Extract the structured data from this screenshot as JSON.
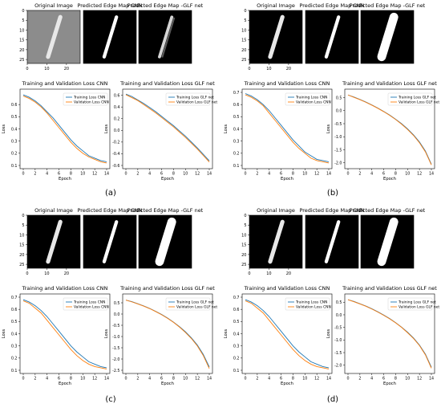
{
  "colors": {
    "training": "#1f77b4",
    "validation": "#ff7f0e",
    "frame": "#000000",
    "text": "#000000"
  },
  "image_panels": {
    "original_title": "Original Image",
    "cnn_title": "Predicted Edge Map CNN",
    "glf_title": "Predicted Edge Map -GLF net",
    "original_xticks": [
      "0",
      "10",
      "20"
    ],
    "yticks": [
      "0",
      "5",
      "10",
      "15",
      "20",
      "25"
    ]
  },
  "panels": [
    {
      "label": "(a)",
      "original_style": "gray",
      "glf_style": "edge"
    },
    {
      "label": "(b)",
      "original_style": "black",
      "glf_style": "bright"
    },
    {
      "label": "(c)",
      "original_style": "black",
      "glf_style": "bright"
    },
    {
      "label": "(d)",
      "original_style": "black",
      "glf_style": "bright"
    }
  ],
  "chart_data": [
    {
      "panel": "(a)",
      "type": "line",
      "title": "Training and Validation Loss CNN",
      "xlabel": "Epoch",
      "ylabel": "Loss",
      "xlim": [
        0,
        14
      ],
      "ylim": [
        0.1,
        0.7
      ],
      "xticks": [
        0,
        2,
        4,
        6,
        8,
        10,
        12,
        14
      ],
      "yticks": [
        0.1,
        0.2,
        0.3,
        0.4,
        0.5,
        0.6
      ],
      "legend": "top-right",
      "grid": false,
      "x": [
        0,
        1,
        2,
        3,
        4,
        5,
        6,
        7,
        8,
        9,
        10,
        11,
        12,
        13,
        14
      ],
      "series": [
        {
          "name": "Training Loss CNN",
          "values": [
            0.68,
            0.66,
            0.63,
            0.59,
            0.54,
            0.49,
            0.43,
            0.37,
            0.31,
            0.26,
            0.22,
            0.18,
            0.16,
            0.14,
            0.13
          ]
        },
        {
          "name": "Validation Loss CNN",
          "values": [
            0.67,
            0.65,
            0.62,
            0.58,
            0.53,
            0.47,
            0.41,
            0.35,
            0.29,
            0.24,
            0.2,
            0.17,
            0.15,
            0.13,
            0.12
          ]
        }
      ]
    },
    {
      "panel": "(a)",
      "type": "line",
      "title": "Training and Validation Loss GLF net",
      "xlabel": "Epoch",
      "ylabel": "Loss",
      "xlim": [
        0,
        14
      ],
      "ylim": [
        -0.6,
        0.65
      ],
      "xticks": [
        0,
        2,
        4,
        6,
        8,
        10,
        12,
        14
      ],
      "yticks": [
        -0.6,
        -0.4,
        -0.2,
        0.0,
        0.2,
        0.4,
        0.6
      ],
      "legend": "top-right",
      "grid": false,
      "x": [
        0,
        1,
        2,
        3,
        4,
        5,
        6,
        7,
        8,
        9,
        10,
        11,
        12,
        13,
        14
      ],
      "series": [
        {
          "name": "Training Loss GLF net",
          "values": [
            0.62,
            0.58,
            0.52,
            0.46,
            0.39,
            0.32,
            0.24,
            0.16,
            0.08,
            -0.01,
            -0.1,
            -0.2,
            -0.3,
            -0.41,
            -0.52
          ]
        },
        {
          "name": "Validation Loss GLF net",
          "values": [
            0.61,
            0.56,
            0.51,
            0.44,
            0.37,
            0.3,
            0.22,
            0.14,
            0.06,
            -0.03,
            -0.12,
            -0.22,
            -0.32,
            -0.43,
            -0.54
          ]
        }
      ]
    },
    {
      "panel": "(b)",
      "type": "line",
      "title": "Training and Validation Loss CNN",
      "xlabel": "Epoch",
      "ylabel": "Loss",
      "xlim": [
        0,
        14
      ],
      "ylim": [
        0.1,
        0.7
      ],
      "xticks": [
        0,
        2,
        4,
        6,
        8,
        10,
        12,
        14
      ],
      "yticks": [
        0.1,
        0.2,
        0.3,
        0.4,
        0.5,
        0.6,
        0.7
      ],
      "legend": "top-right",
      "grid": false,
      "x": [
        0,
        1,
        2,
        3,
        4,
        5,
        6,
        7,
        8,
        9,
        10,
        11,
        12,
        13,
        14
      ],
      "series": [
        {
          "name": "Training Loss CNN",
          "values": [
            0.69,
            0.67,
            0.64,
            0.6,
            0.55,
            0.49,
            0.43,
            0.37,
            0.31,
            0.26,
            0.21,
            0.18,
            0.15,
            0.14,
            0.13
          ]
        },
        {
          "name": "Validation Loss CNN",
          "values": [
            0.68,
            0.66,
            0.63,
            0.59,
            0.53,
            0.47,
            0.41,
            0.35,
            0.29,
            0.24,
            0.2,
            0.16,
            0.14,
            0.13,
            0.12
          ]
        }
      ]
    },
    {
      "panel": "(b)",
      "type": "line",
      "title": "Training and Validation Loss GLF net",
      "xlabel": "Epoch",
      "ylabel": "Loss",
      "xlim": [
        0,
        14
      ],
      "ylim": [
        -2.1,
        0.7
      ],
      "xticks": [
        0,
        2,
        4,
        6,
        8,
        10,
        12,
        14
      ],
      "yticks": [
        -2.0,
        -1.5,
        -1.0,
        -0.5,
        0.0,
        0.5
      ],
      "legend": "top-right",
      "grid": false,
      "x": [
        0,
        1,
        2,
        3,
        4,
        5,
        6,
        7,
        8,
        9,
        10,
        11,
        12,
        13,
        14
      ],
      "series": [
        {
          "name": "Training Loss GLF net",
          "values": [
            0.6,
            0.52,
            0.43,
            0.33,
            0.22,
            0.1,
            -0.03,
            -0.17,
            -0.33,
            -0.5,
            -0.7,
            -0.93,
            -1.2,
            -1.55,
            -2.05
          ]
        },
        {
          "name": "Validation Loss GLF net",
          "values": [
            0.6,
            0.51,
            0.42,
            0.32,
            0.21,
            0.09,
            -0.04,
            -0.18,
            -0.34,
            -0.52,
            -0.72,
            -0.95,
            -1.23,
            -1.58,
            -2.08
          ]
        }
      ]
    },
    {
      "panel": "(c)",
      "type": "line",
      "title": "Training and Validation Loss CNN",
      "xlabel": "Epoch",
      "ylabel": "Loss",
      "xlim": [
        0,
        14
      ],
      "ylim": [
        0.1,
        0.7
      ],
      "xticks": [
        0,
        2,
        4,
        6,
        8,
        10,
        12,
        14
      ],
      "yticks": [
        0.1,
        0.2,
        0.3,
        0.4,
        0.5,
        0.6,
        0.7
      ],
      "legend": "top-right",
      "grid": false,
      "x": [
        0,
        1,
        2,
        3,
        4,
        5,
        6,
        7,
        8,
        9,
        10,
        11,
        12,
        13,
        14
      ],
      "series": [
        {
          "name": "Training Loss CNN",
          "values": [
            0.68,
            0.66,
            0.63,
            0.59,
            0.54,
            0.48,
            0.42,
            0.36,
            0.3,
            0.25,
            0.21,
            0.17,
            0.15,
            0.13,
            0.12
          ]
        },
        {
          "name": "Validation Loss CNN",
          "values": [
            0.67,
            0.65,
            0.61,
            0.57,
            0.51,
            0.45,
            0.39,
            0.33,
            0.27,
            0.22,
            0.18,
            0.15,
            0.13,
            0.12,
            0.11
          ]
        }
      ]
    },
    {
      "panel": "(c)",
      "type": "line",
      "title": "Training and Validation Loss GLF net",
      "xlabel": "Epoch",
      "ylabel": "Loss",
      "xlim": [
        0,
        14
      ],
      "ylim": [
        -2.5,
        0.75
      ],
      "xticks": [
        0,
        2,
        4,
        6,
        8,
        10,
        12,
        14
      ],
      "yticks": [
        -2.5,
        -2.0,
        -1.5,
        -1.0,
        -0.5,
        0.0,
        0.5
      ],
      "legend": "top-right",
      "grid": false,
      "x": [
        0,
        1,
        2,
        3,
        4,
        5,
        6,
        7,
        8,
        9,
        10,
        11,
        12,
        13,
        14
      ],
      "series": [
        {
          "name": "Training Loss GLF net",
          "values": [
            0.62,
            0.55,
            0.46,
            0.36,
            0.25,
            0.12,
            -0.02,
            -0.18,
            -0.36,
            -0.56,
            -0.79,
            -1.06,
            -1.38,
            -1.8,
            -2.35
          ]
        },
        {
          "name": "Validation Loss GLF net",
          "values": [
            0.62,
            0.54,
            0.45,
            0.35,
            0.24,
            0.11,
            -0.03,
            -0.19,
            -0.37,
            -0.58,
            -0.82,
            -1.09,
            -1.42,
            -1.85,
            -2.42
          ]
        }
      ]
    },
    {
      "panel": "(d)",
      "type": "line",
      "title": "Training and Validation Loss CNN",
      "xlabel": "Epoch",
      "ylabel": "Loss",
      "xlim": [
        0,
        14
      ],
      "ylim": [
        0.1,
        0.7
      ],
      "xticks": [
        0,
        2,
        4,
        6,
        8,
        10,
        12,
        14
      ],
      "yticks": [
        0.1,
        0.2,
        0.3,
        0.4,
        0.5,
        0.6,
        0.7
      ],
      "legend": "top-right",
      "grid": false,
      "x": [
        0,
        1,
        2,
        3,
        4,
        5,
        6,
        7,
        8,
        9,
        10,
        11,
        12,
        13,
        14
      ],
      "series": [
        {
          "name": "Training Loss CNN",
          "values": [
            0.68,
            0.66,
            0.63,
            0.59,
            0.54,
            0.48,
            0.42,
            0.36,
            0.3,
            0.25,
            0.21,
            0.17,
            0.15,
            0.13,
            0.12
          ]
        },
        {
          "name": "Validation Loss CNN",
          "values": [
            0.67,
            0.65,
            0.61,
            0.57,
            0.51,
            0.45,
            0.39,
            0.33,
            0.27,
            0.22,
            0.18,
            0.15,
            0.13,
            0.12,
            0.11
          ]
        }
      ]
    },
    {
      "panel": "(d)",
      "type": "line",
      "title": "Training and Validation Loss GLF net",
      "xlabel": "Epoch",
      "ylabel": "Loss",
      "xlim": [
        0,
        14
      ],
      "ylim": [
        -2.2,
        0.7
      ],
      "xticks": [
        0,
        2,
        4,
        6,
        8,
        10,
        12,
        14
      ],
      "yticks": [
        -2.0,
        -1.5,
        -1.0,
        -0.5,
        0.0,
        0.5
      ],
      "legend": "top-right",
      "grid": false,
      "x": [
        0,
        1,
        2,
        3,
        4,
        5,
        6,
        7,
        8,
        9,
        10,
        11,
        12,
        13,
        14
      ],
      "series": [
        {
          "name": "Training Loss GLF net",
          "values": [
            0.6,
            0.53,
            0.44,
            0.35,
            0.24,
            0.12,
            -0.01,
            -0.15,
            -0.31,
            -0.49,
            -0.69,
            -0.92,
            -1.2,
            -1.56,
            -2.08
          ]
        },
        {
          "name": "Validation Loss GLF net",
          "values": [
            0.6,
            0.52,
            0.43,
            0.34,
            0.23,
            0.11,
            -0.02,
            -0.16,
            -0.32,
            -0.5,
            -0.71,
            -0.94,
            -1.22,
            -1.59,
            -2.12
          ]
        }
      ]
    }
  ]
}
